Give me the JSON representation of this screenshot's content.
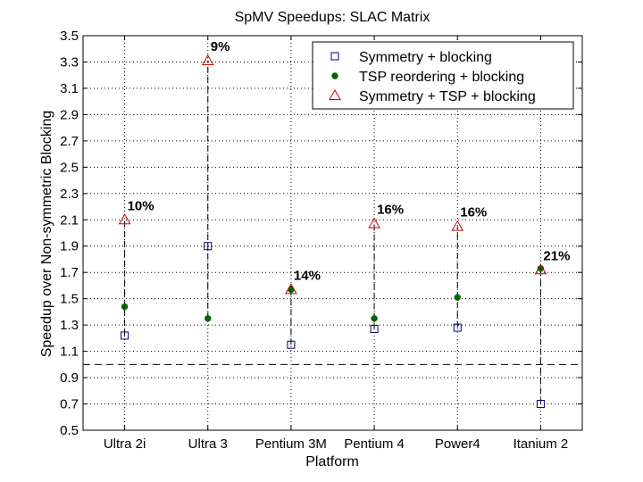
{
  "chart_data": {
    "type": "scatter",
    "title": "SpMV Speedups: SLAC Matrix",
    "xlabel": "Platform",
    "ylabel": "Speedup over Non-symmetric Blocking",
    "categories": [
      "Ultra 2i",
      "Ultra 3",
      "Pentium 3M",
      "Pentium 4",
      "Power4",
      "Itanium 2"
    ],
    "ylim": [
      0.5,
      3.5
    ],
    "yticks": [
      "0.5",
      "0.7",
      "0.9",
      "1.1",
      "1.3",
      "1.5",
      "1.7",
      "1.9",
      "2.1",
      "2.3",
      "2.5",
      "2.7",
      "2.9",
      "3.1",
      "3.3",
      "3.5"
    ],
    "grid": true,
    "baseline": 1.0,
    "legend_position": "top-right",
    "series": [
      {
        "name": "Symmetry + blocking",
        "marker": "square",
        "color": "#00007f",
        "values": [
          1.22,
          1.9,
          1.15,
          1.27,
          1.28,
          0.7
        ]
      },
      {
        "name": "TSP reordering + blocking",
        "marker": "dot",
        "color": "#006400",
        "values": [
          1.44,
          1.35,
          1.57,
          1.35,
          1.51,
          1.73
        ]
      },
      {
        "name": "Symmetry + TSP + blocking",
        "marker": "triangle",
        "color": "#cc0000",
        "values": [
          2.1,
          3.31,
          1.57,
          2.07,
          2.05,
          1.72
        ]
      }
    ],
    "annotations": [
      "10%",
      "9%",
      "14%",
      "16%",
      "16%",
      "21%"
    ]
  }
}
